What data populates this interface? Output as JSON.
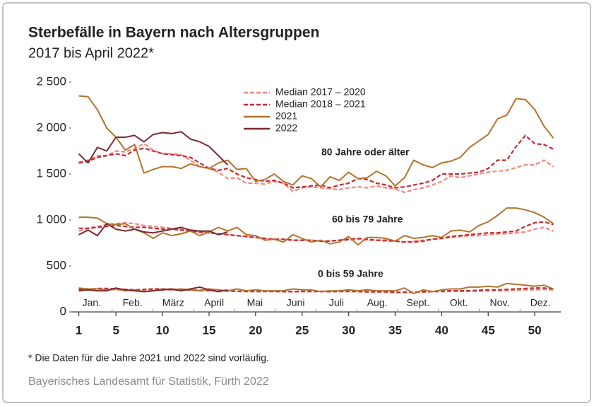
{
  "chart_data": {
    "type": "line",
    "title": "Sterbefälle in Bayern nach Altersgruppen",
    "subtitle": "2017 bis April 2022*",
    "footnote": "* Die Daten für die Jahre 2021 und 2022 sind vorläufig.",
    "source": "Bayerisches Landesamt für Statistik, Fürth 2022",
    "months": [
      "Jan.",
      "Feb.",
      "März",
      "April",
      "Mai",
      "Juni",
      "Juli",
      "Aug.",
      "Sept.",
      "Okt.",
      "Nov.",
      "Dez."
    ],
    "groups": [
      "80 Jahre oder älter",
      "60 bis 79 Jahre",
      "0 bis 59 Jahre"
    ],
    "x": [
      1,
      2,
      3,
      4,
      5,
      6,
      7,
      8,
      9,
      10,
      11,
      12,
      13,
      14,
      15,
      16,
      17,
      18,
      19,
      20,
      21,
      22,
      23,
      24,
      25,
      26,
      27,
      28,
      29,
      30,
      31,
      32,
      33,
      34,
      35,
      36,
      37,
      38,
      39,
      40,
      41,
      42,
      43,
      44,
      45,
      46,
      47,
      48,
      49,
      50,
      51,
      52
    ],
    "xlim": [
      0.2,
      52.8
    ],
    "xticks": [
      1,
      5,
      10,
      15,
      20,
      25,
      30,
      35,
      40,
      45,
      50
    ],
    "ylim": [
      0,
      2500
    ],
    "yticks": [
      0,
      500,
      {
        "value": 1000,
        "label": "1 000"
      },
      {
        "value": 1500,
        "label": "1 500"
      },
      {
        "value": 2000,
        "label": "2 000"
      },
      {
        "value": 2500,
        "label": "2 500"
      }
    ],
    "series": [
      {
        "name": "Median 2017 – 2020",
        "color": "#f2877c",
        "dashed": true,
        "values": [
          [
            1630,
            1650,
            1700,
            1700,
            1750,
            1740,
            1780,
            1830,
            1760,
            1720,
            1720,
            1710,
            1650,
            1580,
            1560,
            1520,
            1450,
            1460,
            1400,
            1400,
            1390,
            1420,
            1400,
            1310,
            1350,
            1360,
            1350,
            1340,
            1330,
            1350,
            1360,
            1350,
            1370,
            1350,
            1340,
            1300,
            1330,
            1350,
            1380,
            1420,
            1480,
            1460,
            1480,
            1500,
            1520,
            1530,
            1540,
            1570,
            1600,
            1600,
            1650,
            1580
          ],
          [
            880,
            910,
            930,
            950,
            960,
            970,
            960,
            940,
            930,
            920,
            910,
            900,
            880,
            870,
            860,
            850,
            840,
            830,
            820,
            810,
            800,
            790,
            790,
            780,
            780,
            780,
            770,
            770,
            780,
            780,
            790,
            780,
            780,
            770,
            770,
            760,
            770,
            780,
            790,
            800,
            810,
            820,
            830,
            830,
            840,
            850,
            850,
            860,
            870,
            900,
            920,
            880
          ],
          [
            240,
            240,
            250,
            250,
            240,
            240,
            230,
            240,
            240,
            240,
            240,
            240,
            235,
            230,
            230,
            230,
            225,
            225,
            220,
            220,
            220,
            220,
            220,
            220,
            220,
            220,
            220,
            220,
            220,
            220,
            220,
            215,
            215,
            215,
            210,
            210,
            215,
            215,
            220,
            220,
            225,
            225,
            225,
            225,
            230,
            230,
            230,
            235,
            240,
            240,
            245,
            240
          ]
        ]
      },
      {
        "name": "Median 2018 – 2021",
        "color": "#c62b30",
        "dashed": true,
        "values": [
          [
            1620,
            1640,
            1680,
            1700,
            1720,
            1700,
            1760,
            1780,
            1750,
            1720,
            1710,
            1700,
            1680,
            1620,
            1560,
            1540,
            1560,
            1500,
            1460,
            1440,
            1420,
            1430,
            1400,
            1350,
            1360,
            1370,
            1380,
            1350,
            1380,
            1400,
            1450,
            1440,
            1400,
            1380,
            1350,
            1360,
            1380,
            1400,
            1430,
            1500,
            1500,
            1500,
            1510,
            1520,
            1560,
            1650,
            1650,
            1800,
            1920,
            1830,
            1820,
            1770
          ],
          [
            910,
            910,
            920,
            930,
            940,
            930,
            920,
            920,
            910,
            900,
            900,
            890,
            880,
            870,
            860,
            850,
            840,
            830,
            820,
            810,
            800,
            790,
            790,
            780,
            780,
            780,
            770,
            770,
            780,
            790,
            800,
            790,
            780,
            780,
            770,
            760,
            760,
            770,
            790,
            800,
            820,
            830,
            840,
            850,
            860,
            860,
            870,
            880,
            930,
            970,
            980,
            950
          ],
          [
            245,
            245,
            255,
            255,
            250,
            245,
            240,
            245,
            250,
            250,
            245,
            245,
            240,
            235,
            235,
            230,
            230,
            225,
            225,
            225,
            225,
            225,
            220,
            220,
            225,
            225,
            225,
            220,
            225,
            225,
            225,
            220,
            220,
            220,
            215,
            215,
            215,
            220,
            225,
            225,
            230,
            230,
            230,
            235,
            240,
            240,
            245,
            250,
            255,
            260,
            260,
            250
          ]
        ]
      },
      {
        "name": "2021",
        "color": "#b5722c",
        "dashed": false,
        "values": [
          [
            2350,
            2340,
            2200,
            2000,
            1900,
            1760,
            1820,
            1510,
            1550,
            1580,
            1580,
            1560,
            1610,
            1580,
            1560,
            1620,
            1650,
            1550,
            1560,
            1420,
            1440,
            1500,
            1420,
            1380,
            1480,
            1450,
            1360,
            1470,
            1430,
            1520,
            1450,
            1460,
            1530,
            1480,
            1370,
            1460,
            1650,
            1600,
            1570,
            1620,
            1640,
            1680,
            1790,
            1860,
            1930,
            2100,
            2140,
            2320,
            2310,
            2200,
            2020,
            1890
          ],
          [
            1030,
            1030,
            1020,
            960,
            950,
            960,
            900,
            860,
            800,
            860,
            830,
            850,
            880,
            830,
            870,
            920,
            880,
            920,
            840,
            830,
            780,
            790,
            760,
            840,
            800,
            760,
            780,
            740,
            760,
            820,
            730,
            810,
            810,
            800,
            770,
            830,
            800,
            810,
            830,
            810,
            880,
            890,
            870,
            940,
            980,
            1050,
            1130,
            1130,
            1110,
            1080,
            1030,
            960
          ],
          [
            260,
            250,
            250,
            240,
            250,
            230,
            240,
            220,
            230,
            250,
            240,
            250,
            240,
            230,
            250,
            240,
            230,
            250,
            230,
            240,
            230,
            230,
            230,
            250,
            240,
            240,
            220,
            230,
            230,
            240,
            230,
            240,
            230,
            230,
            230,
            260,
            200,
            240,
            220,
            240,
            250,
            250,
            270,
            270,
            280,
            270,
            310,
            300,
            290,
            280,
            290,
            250
          ]
        ]
      },
      {
        "name": "2022",
        "color": "#7b2a30",
        "dashed": false,
        "values": [
          [
            1720,
            1620,
            1790,
            1750,
            1900,
            1900,
            1920,
            1850,
            1930,
            1950,
            1940,
            1960,
            1880,
            1850,
            1800,
            1700,
            1600,
            null,
            null,
            null,
            null,
            null,
            null,
            null,
            null,
            null,
            null,
            null,
            null,
            null,
            null,
            null,
            null,
            null,
            null,
            null,
            null,
            null,
            null,
            null,
            null,
            null,
            null,
            null,
            null,
            null,
            null,
            null,
            null,
            null,
            null,
            null
          ],
          [
            840,
            890,
            830,
            960,
            900,
            880,
            900,
            870,
            860,
            880,
            900,
            920,
            890,
            880,
            880,
            840,
            870,
            null,
            null,
            null,
            null,
            null,
            null,
            null,
            null,
            null,
            null,
            null,
            null,
            null,
            null,
            null,
            null,
            null,
            null,
            null,
            null,
            null,
            null,
            null,
            null,
            null,
            null,
            null,
            null,
            null,
            null,
            null,
            null,
            null,
            null,
            null
          ],
          [
            230,
            240,
            230,
            230,
            260,
            240,
            230,
            220,
            230,
            240,
            250,
            230,
            250,
            270,
            240,
            220,
            240,
            null,
            null,
            null,
            null,
            null,
            null,
            null,
            null,
            null,
            null,
            null,
            null,
            null,
            null,
            null,
            null,
            null,
            null,
            null,
            null,
            null,
            null,
            null,
            null,
            null,
            null,
            null,
            null,
            null,
            null,
            null,
            null,
            null,
            null,
            null
          ]
        ]
      }
    ]
  }
}
